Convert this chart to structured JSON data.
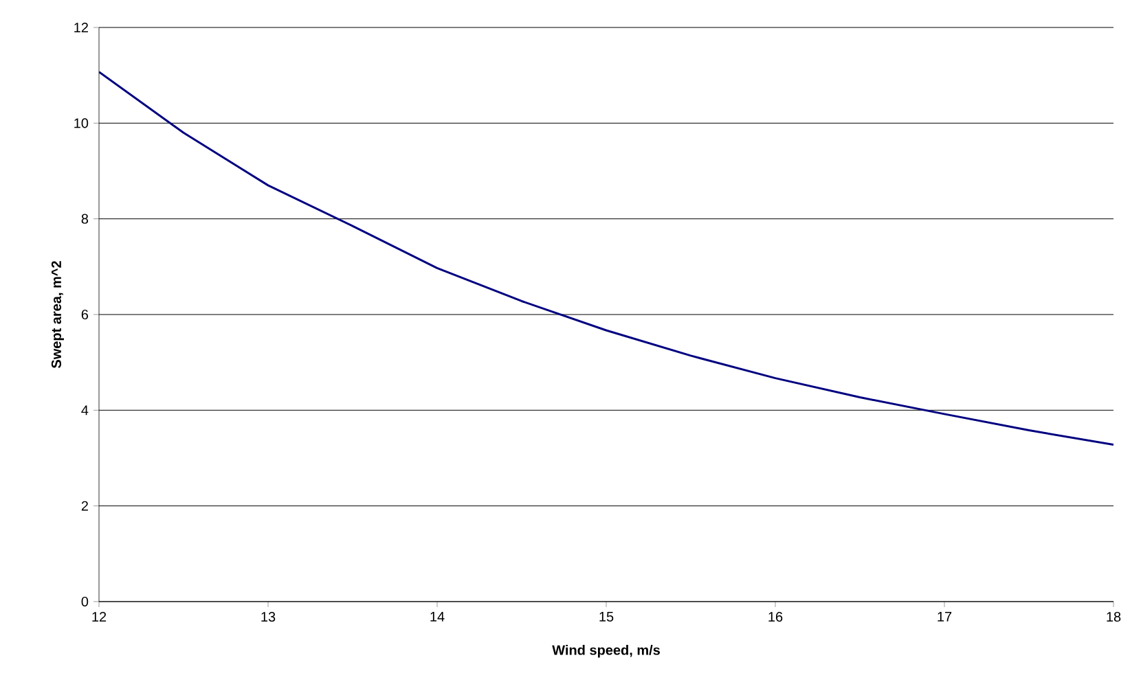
{
  "chart_data": {
    "type": "line",
    "xlabel": "Wind speed, m/s",
    "ylabel": "Swept area, m^2",
    "x": [
      12,
      12.5,
      13,
      13.5,
      14,
      14.5,
      15,
      15.5,
      16,
      16.5,
      17,
      17.5,
      18
    ],
    "series": [
      {
        "color": "#000080",
        "values": [
          11.07,
          9.8,
          8.7,
          7.85,
          6.97,
          6.28,
          5.67,
          5.14,
          4.67,
          4.27,
          3.92,
          3.58,
          3.28
        ]
      }
    ],
    "xlim": [
      12,
      18
    ],
    "ylim": [
      0,
      12
    ],
    "xticks": [
      12,
      13,
      14,
      15,
      16,
      17,
      18
    ],
    "yticks": [
      0,
      2,
      4,
      6,
      8,
      10,
      12
    ],
    "grid": "y",
    "legend": false,
    "marker": "none",
    "line_style": "solid"
  }
}
